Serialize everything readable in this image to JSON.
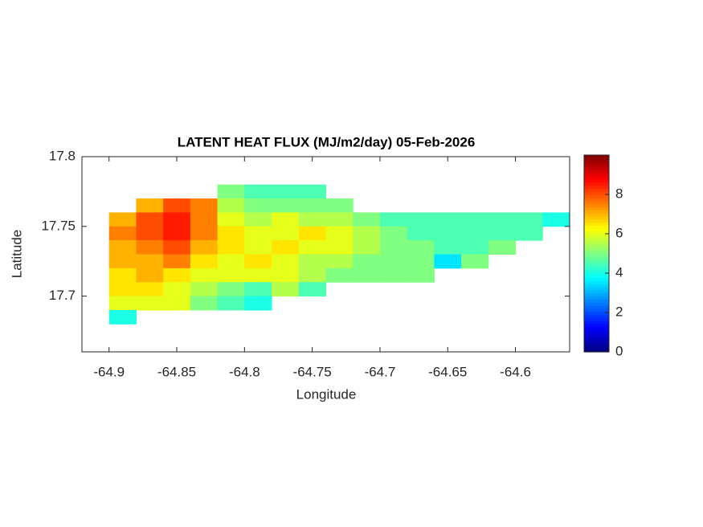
{
  "chart_data": {
    "type": "heatmap",
    "title": "LATENT HEAT FLUX (MJ/m2/day) 05-Feb-2026",
    "xlabel": "Longitude",
    "ylabel": "Latitude",
    "xlim": [
      -64.92,
      -64.56
    ],
    "ylim": [
      17.66,
      17.8
    ],
    "xticks": [
      -64.9,
      -64.85,
      -64.8,
      -64.75,
      -64.7,
      -64.65,
      -64.6
    ],
    "yticks": [
      17.7,
      17.75,
      17.8
    ],
    "x": [
      -64.89,
      -64.87,
      -64.85,
      -64.83,
      -64.81,
      -64.79,
      -64.77,
      -64.75,
      -64.73,
      -64.71,
      -64.69,
      -64.67,
      -64.65,
      -64.63,
      -64.61,
      -64.59,
      -64.57
    ],
    "y": [
      17.775,
      17.765,
      17.755,
      17.745,
      17.735,
      17.725,
      17.715,
      17.705,
      17.695,
      17.685
    ],
    "values": [
      [
        null,
        null,
        null,
        null,
        5,
        4.5,
        4.5,
        4.5,
        null,
        null,
        null,
        null,
        null,
        null,
        null,
        null,
        null
      ],
      [
        null,
        7,
        8,
        7.5,
        5.5,
        5,
        5,
        5,
        5,
        null,
        null,
        null,
        null,
        null,
        null,
        null,
        null
      ],
      [
        7,
        8,
        8.5,
        7.5,
        6,
        5.5,
        6,
        5.5,
        5.5,
        5,
        4.5,
        4.5,
        4.5,
        4.5,
        4.5,
        4.5,
        4
      ],
      [
        7.5,
        8,
        8.5,
        7.5,
        6.5,
        6,
        6,
        6.5,
        6,
        5.5,
        5,
        4.5,
        4.5,
        4.5,
        4.5,
        4.5,
        null
      ],
      [
        7,
        7.5,
        8,
        7,
        6.5,
        6,
        6.5,
        6,
        6,
        5.5,
        5,
        5,
        4.5,
        4.5,
        5,
        null,
        null
      ],
      [
        7,
        7,
        7.5,
        6.5,
        6,
        6.5,
        6,
        5.5,
        5.5,
        5,
        5,
        5,
        3.5,
        5,
        null,
        null,
        null
      ],
      [
        6.5,
        7,
        6.5,
        6,
        6,
        6,
        6,
        5.5,
        5,
        5,
        5,
        5,
        null,
        null,
        null,
        null,
        null
      ],
      [
        6.5,
        6.5,
        6,
        5.5,
        5,
        4.5,
        5.5,
        4.5,
        null,
        null,
        null,
        null,
        null,
        null,
        null,
        null,
        null
      ],
      [
        6,
        6,
        6,
        5,
        4.5,
        4,
        null,
        null,
        null,
        null,
        null,
        null,
        null,
        null,
        null,
        null,
        null
      ],
      [
        4,
        null,
        null,
        null,
        null,
        null,
        null,
        null,
        null,
        null,
        null,
        null,
        null,
        null,
        null,
        null,
        null
      ]
    ],
    "colormap": "jet",
    "clim": [
      0,
      10
    ],
    "cticks": [
      0,
      2,
      4,
      6,
      8
    ]
  }
}
